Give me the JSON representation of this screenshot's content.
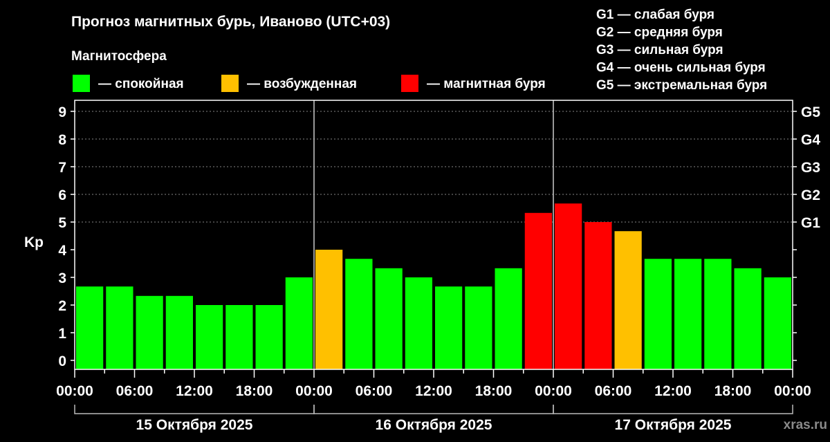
{
  "chart_data": {
    "type": "bar",
    "title": "Прогноз магнитных бурь, Иваново (UTC+03)",
    "legend_title": "Магнитосфера",
    "legend": [
      {
        "label": "— спокойная",
        "color": "#00ff00"
      },
      {
        "label": "— возбужденная",
        "color": "#ffc000"
      },
      {
        "label": "— магнитная буря",
        "color": "#ff0000"
      }
    ],
    "g_scale": [
      "G1 — слабая буря",
      "G2 — средняя буря",
      "G3 — сильная буря",
      "G4 — очень сильная буря",
      "G5 — экстремальная буря"
    ],
    "ylabel": "Kp",
    "ylim": [
      0,
      9
    ],
    "yticks": [
      "0",
      "1",
      "2",
      "3",
      "4",
      "5",
      "6",
      "7",
      "8",
      "9"
    ],
    "right_ticks": [
      {
        "value": 5,
        "label": "G1"
      },
      {
        "value": 6,
        "label": "G2"
      },
      {
        "value": 7,
        "label": "G3"
      },
      {
        "value": 8,
        "label": "G4"
      },
      {
        "value": 9,
        "label": "G5"
      }
    ],
    "grid": "dotted at 5-9",
    "xticks": [
      "00:00",
      "06:00",
      "12:00",
      "18:00",
      "00:00",
      "06:00",
      "12:00",
      "18:00",
      "00:00",
      "06:00",
      "12:00",
      "18:00",
      "00:00"
    ],
    "days": [
      "15 Октября 2025",
      "16 Октября 2025",
      "17 Октября 2025"
    ],
    "interval_hours": 3,
    "values": [
      2.67,
      2.67,
      2.33,
      2.33,
      2,
      2,
      2,
      3,
      4,
      3.67,
      3.33,
      3,
      2.67,
      2.67,
      3.33,
      5.33,
      5.67,
      5,
      4.67,
      3.67,
      3.67,
      3.67,
      3.33,
      3
    ],
    "levels": [
      "calm",
      "calm",
      "calm",
      "calm",
      "calm",
      "calm",
      "calm",
      "calm",
      "excited",
      "calm",
      "calm",
      "calm",
      "calm",
      "calm",
      "calm",
      "storm",
      "storm",
      "storm",
      "excited",
      "calm",
      "calm",
      "calm",
      "calm",
      "calm"
    ],
    "colors": {
      "calm": "#00ff00",
      "excited": "#ffc000",
      "storm": "#ff0000"
    },
    "watermark": "xras.ru"
  }
}
